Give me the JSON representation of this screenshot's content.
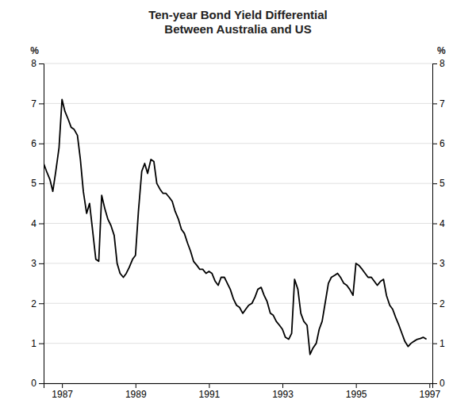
{
  "chart_data": {
    "type": "line",
    "title": "Ten-year Bond Yield Differential\nBetween Australia and US",
    "ylabel": "%",
    "y2label": "%",
    "color": "#000000",
    "grid": true,
    "xlim": [
      1986.5,
      1997.08
    ],
    "xticks": [
      1987,
      1989,
      1991,
      1993,
      1995,
      1997
    ],
    "ylim": [
      0,
      8
    ],
    "yticks": [
      0,
      1,
      2,
      3,
      4,
      5,
      6,
      7,
      8
    ],
    "y2lim": [
      0,
      8
    ],
    "y2ticks": [
      0,
      1,
      2,
      3,
      4,
      5,
      6,
      7,
      8
    ],
    "x": [
      1986.5,
      1986.58,
      1986.67,
      1986.75,
      1986.83,
      1986.92,
      1987.0,
      1987.08,
      1987.17,
      1987.25,
      1987.33,
      1987.42,
      1987.5,
      1987.58,
      1987.67,
      1987.75,
      1987.83,
      1987.92,
      1988.0,
      1988.08,
      1988.17,
      1988.25,
      1988.33,
      1988.42,
      1988.5,
      1988.58,
      1988.67,
      1988.75,
      1988.83,
      1988.92,
      1989.0,
      1989.08,
      1989.17,
      1989.25,
      1989.33,
      1989.42,
      1989.5,
      1989.58,
      1989.67,
      1989.75,
      1989.83,
      1989.92,
      1990.0,
      1990.08,
      1990.17,
      1990.25,
      1990.33,
      1990.42,
      1990.5,
      1990.58,
      1990.67,
      1990.75,
      1990.83,
      1990.92,
      1991.0,
      1991.08,
      1991.17,
      1991.25,
      1991.33,
      1991.42,
      1991.5,
      1991.58,
      1991.67,
      1991.75,
      1991.83,
      1991.92,
      1992.0,
      1992.08,
      1992.17,
      1992.25,
      1992.33,
      1992.42,
      1992.5,
      1992.58,
      1992.67,
      1992.75,
      1992.83,
      1992.92,
      1993.0,
      1993.08,
      1993.17,
      1993.25,
      1993.33,
      1993.42,
      1993.5,
      1993.58,
      1993.67,
      1993.75,
      1993.83,
      1993.92,
      1994.0,
      1994.08,
      1994.17,
      1994.25,
      1994.33,
      1994.42,
      1994.5,
      1994.58,
      1994.67,
      1994.75,
      1994.83,
      1994.92,
      1995.0,
      1995.08,
      1995.17,
      1995.25,
      1995.33,
      1995.42,
      1995.5,
      1995.58,
      1995.67,
      1995.75,
      1995.83,
      1995.92,
      1996.0,
      1996.08,
      1996.17,
      1996.25,
      1996.33,
      1996.42,
      1996.5,
      1996.58,
      1996.67,
      1996.75,
      1996.83,
      1996.92
    ],
    "values": [
      5.5,
      5.3,
      5.1,
      4.8,
      5.3,
      5.9,
      7.1,
      6.8,
      6.6,
      6.4,
      6.35,
      6.2,
      5.6,
      4.8,
      4.25,
      4.5,
      3.85,
      3.1,
      3.05,
      4.7,
      4.35,
      4.1,
      3.95,
      3.7,
      3.0,
      2.75,
      2.65,
      2.75,
      2.9,
      3.1,
      3.2,
      4.3,
      5.3,
      5.5,
      5.25,
      5.6,
      5.55,
      5.0,
      4.85,
      4.75,
      4.75,
      4.65,
      4.55,
      4.3,
      4.1,
      3.85,
      3.75,
      3.5,
      3.3,
      3.05,
      2.95,
      2.85,
      2.85,
      2.75,
      2.8,
      2.75,
      2.55,
      2.45,
      2.65,
      2.65,
      2.5,
      2.35,
      2.1,
      1.95,
      1.9,
      1.75,
      1.85,
      1.95,
      2.0,
      2.15,
      2.35,
      2.4,
      2.2,
      2.05,
      1.75,
      1.7,
      1.55,
      1.45,
      1.35,
      1.15,
      1.1,
      1.25,
      2.6,
      2.35,
      1.75,
      1.55,
      1.45,
      0.72,
      0.88,
      1.0,
      1.35,
      1.55,
      2.05,
      2.5,
      2.65,
      2.7,
      2.75,
      2.65,
      2.5,
      2.45,
      2.35,
      2.2,
      3.0,
      2.95,
      2.85,
      2.75,
      2.65,
      2.65,
      2.55,
      2.45,
      2.55,
      2.6,
      2.2,
      1.95,
      1.85,
      1.65,
      1.45,
      1.25,
      1.05,
      0.92,
      1.0,
      1.05,
      1.1,
      1.12,
      1.15,
      1.1
    ]
  }
}
